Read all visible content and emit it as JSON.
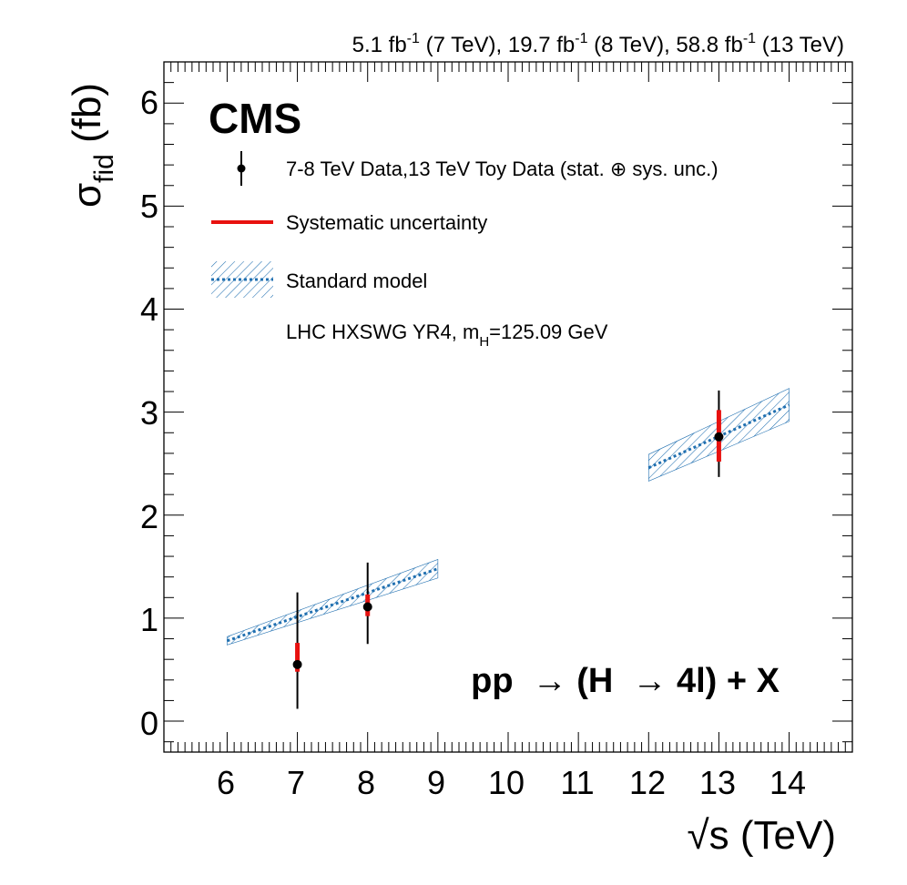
{
  "chart_data": {
    "type": "scatter",
    "experiment": "CMS",
    "lumi": {
      "v1": "5.1 fb",
      "e1": "-1",
      "s1": " (7 TeV), ",
      "v2": "19.7 fb",
      "e2": "-1",
      "s2": " (8 TeV), ",
      "v3": "58.8 fb",
      "e3": "-1",
      "s3": " (13 TeV)"
    },
    "ylabel": {
      "main": "σ",
      "sub": "fid",
      "rest": " (fb)"
    },
    "xlabel": {
      "root": "√",
      "rest": "s (TeV)"
    },
    "process": "pp  → (H  → 4l) + X",
    "xlim": [
      5.1,
      14.9
    ],
    "ylim": [
      -0.3,
      6.4
    ],
    "xticks": [
      "6",
      "7",
      "8",
      "9",
      "10",
      "11",
      "12",
      "13",
      "14"
    ],
    "yticks": [
      "0",
      "1",
      "2",
      "3",
      "4",
      "5",
      "6"
    ],
    "legend": {
      "data": "7-8 TeV Data,13 TeV Toy Data (stat. ⊕ sys. unc.)",
      "syst": "Systematic uncertainty",
      "sm": "Standard model",
      "sm_note_main": "LHC HXSWG YR4, m",
      "sm_note_sub": "H",
      "sm_note_rest": "=125.09 GeV"
    },
    "points": [
      {
        "x": 7,
        "y": 0.55,
        "tot_lo": 0.12,
        "tot_hi": 1.25,
        "sys_lo": 0.48,
        "sys_hi": 0.76
      },
      {
        "x": 8,
        "y": 1.11,
        "tot_lo": 0.75,
        "tot_hi": 1.54,
        "sys_lo": 1.02,
        "sys_hi": 1.23
      },
      {
        "x": 13,
        "y": 2.76,
        "tot_lo": 2.37,
        "tot_hi": 3.21,
        "sys_lo": 2.52,
        "sys_hi": 3.02
      }
    ],
    "sm_bands": [
      {
        "x": [
          6,
          9
        ],
        "y": [
          0.78,
          1.48
        ],
        "lo": [
          0.74,
          1.39
        ],
        "hi": [
          0.82,
          1.57
        ]
      },
      {
        "x": [
          12,
          14
        ],
        "y": [
          2.46,
          3.07
        ],
        "lo": [
          2.33,
          2.91
        ],
        "hi": [
          2.59,
          3.23
        ]
      }
    ],
    "colors": {
      "data": "#000000",
      "syst": "#e8110f",
      "sm": "#1f6fb0"
    }
  }
}
